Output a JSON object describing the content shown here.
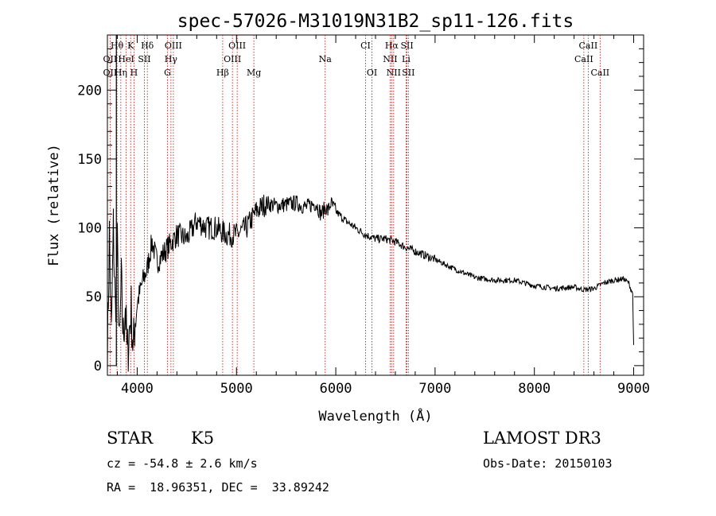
{
  "chart_data": {
    "type": "line",
    "title": "spec-57026-M31019N31B2_sp11-126.fits",
    "xlabel": "Wavelength (Å)",
    "ylabel": "Flux (relative)",
    "xlim": [
      3700,
      9100
    ],
    "ylim": [
      -7,
      240
    ],
    "x_ticks": [
      4000,
      5000,
      6000,
      7000,
      8000,
      9000
    ],
    "x_tick_labels": [
      "4000",
      "5000",
      "6000",
      "7000",
      "8000",
      "9000"
    ],
    "y_ticks": [
      0,
      50,
      100,
      150,
      200
    ],
    "y_tick_labels": [
      "0",
      "50",
      "100",
      "150",
      "200"
    ],
    "series": [
      {
        "name": "flux",
        "x": [
          3700,
          3720,
          3740,
          3760,
          3780,
          3800,
          3820,
          3840,
          3860,
          3880,
          3900,
          3920,
          3940,
          3960,
          3980,
          4000,
          4050,
          4100,
          4150,
          4200,
          4250,
          4300,
          4350,
          4400,
          4500,
          4600,
          4700,
          4800,
          4900,
          5000,
          5100,
          5200,
          5300,
          5400,
          5500,
          5600,
          5700,
          5800,
          5850,
          5900,
          5920,
          5950,
          6000,
          6100,
          6200,
          6300,
          6400,
          6500,
          6600,
          6700,
          6800,
          6900,
          7000,
          7200,
          7400,
          7600,
          7800,
          8000,
          8200,
          8400,
          8500,
          8600,
          8700,
          8800,
          8900,
          8950,
          8990,
          9000
        ],
        "y": [
          5,
          95,
          20,
          100,
          40,
          85,
          10,
          60,
          20,
          45,
          5,
          25,
          40,
          10,
          35,
          45,
          60,
          70,
          90,
          75,
          80,
          85,
          90,
          95,
          92,
          105,
          100,
          100,
          95,
          95,
          100,
          112,
          118,
          116,
          117,
          118,
          115,
          118,
          110,
          115,
          112,
          118,
          112,
          105,
          100,
          95,
          92,
          92,
          90,
          86,
          83,
          80,
          77,
          70,
          64,
          62,
          62,
          58,
          56,
          57,
          55,
          56,
          60,
          62,
          63,
          60,
          52,
          15
        ]
      }
    ],
    "spectral_lines": [
      {
        "label": "Hθ",
        "x": 3797,
        "row": 1
      },
      {
        "label": "K",
        "x": 3934,
        "row": 1
      },
      {
        "label": "Hδ",
        "x": 4102,
        "row": 1
      },
      {
        "label": "OIII",
        "x": 4364,
        "row": 1
      },
      {
        "label": "OIII",
        "x": 5007,
        "row": 1
      },
      {
        "label": "CI",
        "x": 6300,
        "row": 1
      },
      {
        "label": "Hα",
        "x": 6563,
        "row": 1
      },
      {
        "label": "SII",
        "x": 6717,
        "row": 1
      },
      {
        "label": "CaII",
        "x": 8542,
        "row": 1
      },
      {
        "label": "OII",
        "x": 3727,
        "row": 2
      },
      {
        "label": "HeI",
        "x": 3889,
        "row": 2
      },
      {
        "label": "SII",
        "x": 4072,
        "row": 2
      },
      {
        "label": "Hγ",
        "x": 4340,
        "row": 2
      },
      {
        "label": "OIII",
        "x": 4959,
        "row": 2
      },
      {
        "label": "Na",
        "x": 5893,
        "row": 2
      },
      {
        "label": "NII",
        "x": 6548,
        "row": 2
      },
      {
        "label": "Li",
        "x": 6708,
        "row": 2
      },
      {
        "label": "CaII",
        "x": 8498,
        "row": 2
      },
      {
        "label": "OII",
        "x": 3727,
        "row": 3
      },
      {
        "label": "Hη",
        "x": 3835,
        "row": 3
      },
      {
        "label": "H",
        "x": 3968,
        "row": 3
      },
      {
        "label": "G",
        "x": 4305,
        "row": 3
      },
      {
        "label": "Hβ",
        "x": 4861,
        "row": 3
      },
      {
        "label": "Mg",
        "x": 5175,
        "row": 3
      },
      {
        "label": "OI",
        "x": 6364,
        "row": 3
      },
      {
        "label": "NII",
        "x": 6583,
        "row": 3
      },
      {
        "label": "SII",
        "x": 6731,
        "row": 3
      },
      {
        "label": "CaII",
        "x": 8662,
        "row": 3
      }
    ],
    "grid": false,
    "legend": "none"
  },
  "info": {
    "class_label": "STAR",
    "subclass": "K5",
    "survey": "LAMOST DR3",
    "redshift": "cz = -54.8 ± 2.6 km/s",
    "obs_date": "Obs-Date: 20150103",
    "coords": "RA =  18.96351, DEC =  33.89242"
  },
  "colors": {
    "line": "#000000",
    "marker_line": "#cc0000",
    "text": "#000000",
    "background": "#ffffff"
  }
}
